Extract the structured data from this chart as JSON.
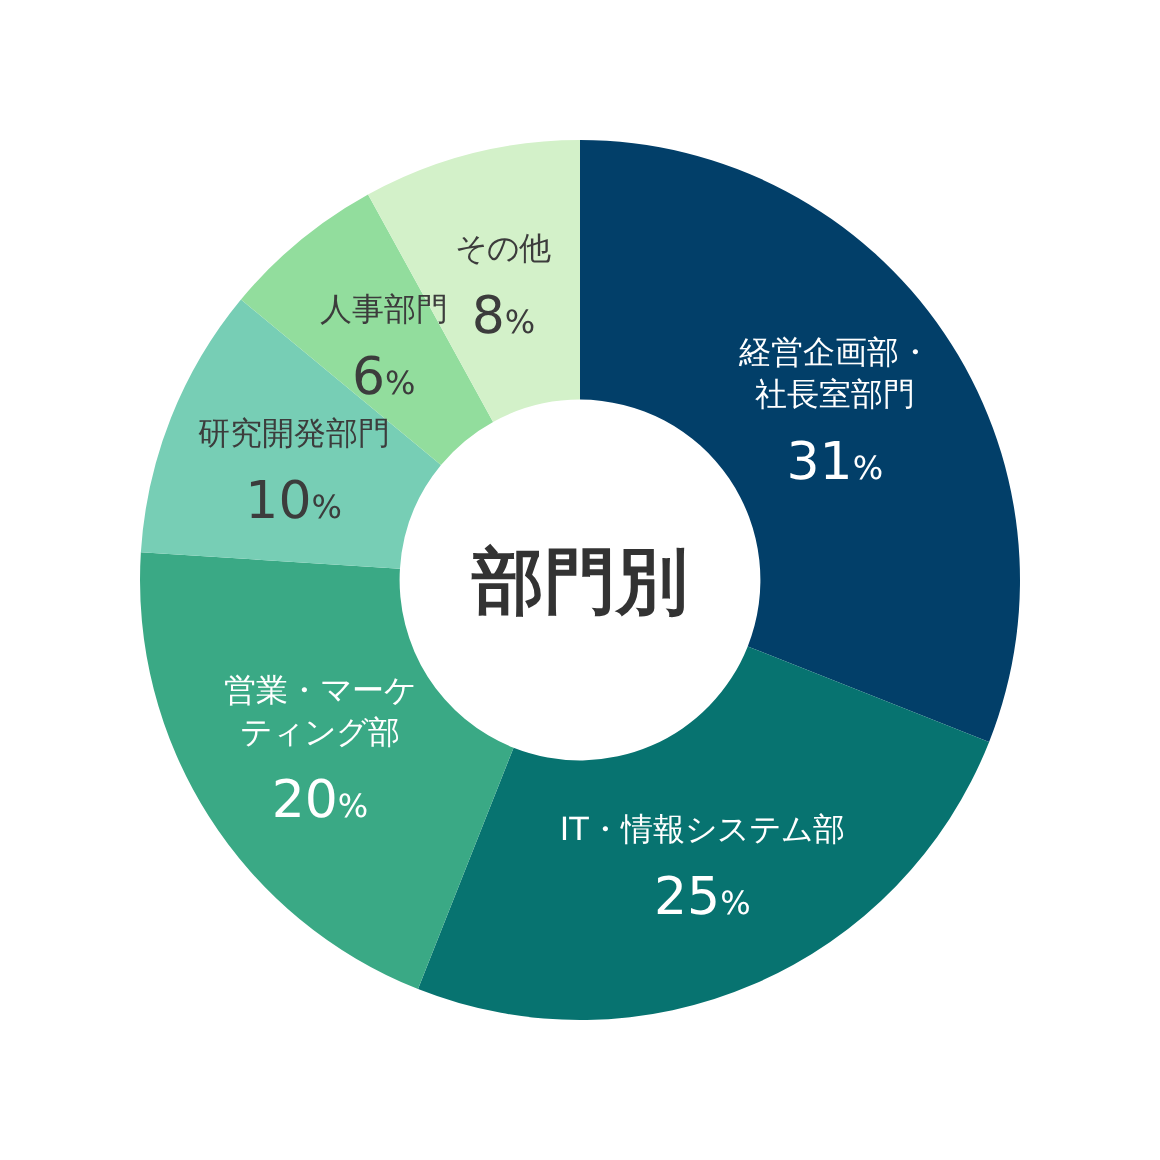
{
  "chart_data": {
    "type": "donut",
    "title": "部門別",
    "categories": [
      "経営企画部・社長室部門",
      "IT・情報システム部",
      "営業・マーケティング部",
      "研究開発部門",
      "人事部門",
      "その他"
    ],
    "values": [
      31,
      25,
      20,
      10,
      6,
      8
    ],
    "value_labels": [
      "31%",
      "25%",
      "20%",
      "10%",
      "6%",
      "8%"
    ],
    "colors": [
      "#023f69",
      "#077370",
      "#3aa985",
      "#77ceb5",
      "#92dd9d",
      "#d3f1c9"
    ]
  }
}
